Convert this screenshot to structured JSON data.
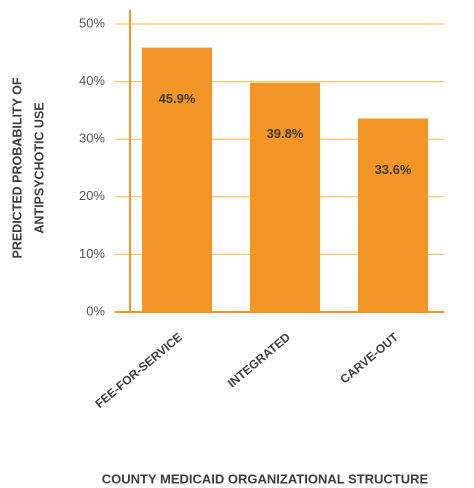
{
  "chart_data": {
    "type": "bar",
    "categories": [
      "FEE-FOR-SERVICE",
      "INTEGRATED",
      "CARVE-OUT"
    ],
    "values": [
      45.9,
      39.8,
      33.6
    ],
    "value_labels": [
      "45.9%",
      "39.8%",
      "33.6%"
    ],
    "color": "#f39625",
    "ylim": [
      0,
      50
    ],
    "yticks": [
      {
        "value": 0,
        "label": "0%"
      },
      {
        "value": 10,
        "label": "10%"
      },
      {
        "value": 20,
        "label": "20%"
      },
      {
        "value": 30,
        "label": "30%"
      },
      {
        "value": 40,
        "label": "40%"
      },
      {
        "value": 50,
        "label": "50%"
      }
    ],
    "grid": true,
    "ylabel": [
      "PREDICTED PROBABILITY OF",
      "ANTIPSYCHOTIC USE"
    ],
    "xlabel": "COUNTY MEDICAID ORGANIZATIONAL STRUCTURE"
  }
}
